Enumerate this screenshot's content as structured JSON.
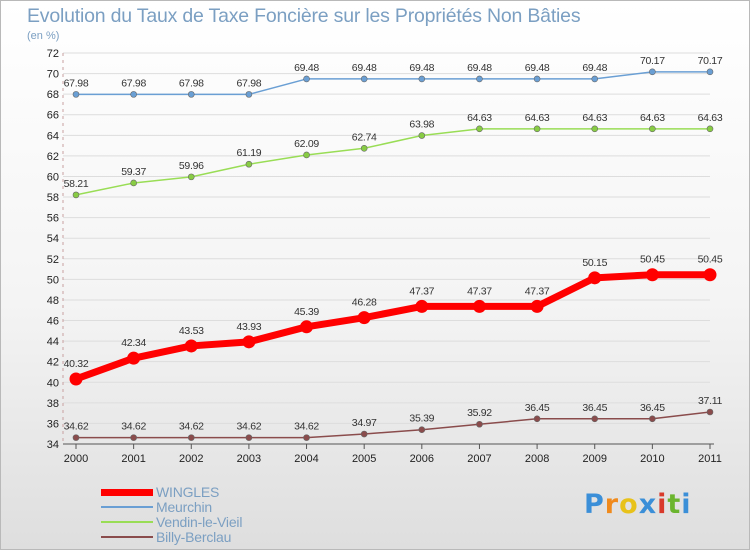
{
  "title": "Evolution du Taux de Taxe Foncière sur les Propriétés Non Bâties",
  "unit_label": "(en %)",
  "logo": {
    "text": "Proxiti",
    "letters": [
      "P",
      "r",
      "o",
      "x",
      "i",
      "t",
      "i"
    ],
    "colors": [
      "#3b8fd8",
      "#f08a1c",
      "#e8c21a",
      "#3b8fd8",
      "#d93a2b",
      "#6bb52e",
      "#3b8fd8"
    ]
  },
  "chart_data": {
    "type": "line",
    "title": "Evolution du Taux de Taxe Foncière sur les Propriétés Non Bâties",
    "ylabel": "(en %)",
    "xlabel": "",
    "ylim": [
      34,
      72
    ],
    "yticks": [
      34,
      36,
      38,
      40,
      42,
      44,
      46,
      48,
      50,
      52,
      54,
      56,
      58,
      60,
      62,
      64,
      66,
      68,
      70,
      72
    ],
    "categories": [
      "2000",
      "2001",
      "2002",
      "2003",
      "2004",
      "2005",
      "2006",
      "2007",
      "2008",
      "2009",
      "2010",
      "2011"
    ],
    "grid": "horizontal",
    "legend_position": "bottom-left",
    "series": [
      {
        "name": "WINGLES",
        "color": "#ff0000",
        "marker_color": "#ff0000",
        "emphasis": "thick",
        "values": [
          40.32,
          42.34,
          43.53,
          43.93,
          45.39,
          46.28,
          47.37,
          47.37,
          47.37,
          50.15,
          50.45,
          50.45
        ],
        "labels": [
          "40.32",
          "42.34",
          "43.53",
          "43.93",
          "45.39",
          "46.28",
          "47.37",
          "47.37",
          "47.37",
          "50.15",
          "50.45",
          "50.45"
        ]
      },
      {
        "name": "Meurchin",
        "color": "#6a9fd4",
        "marker_color": "#6a9fd4",
        "emphasis": "thin",
        "values": [
          67.98,
          67.98,
          67.98,
          67.98,
          69.48,
          69.48,
          69.48,
          69.48,
          69.48,
          69.48,
          70.17,
          70.17
        ],
        "labels": [
          "67.98",
          "67.98",
          "67.98",
          "67.98",
          "69.48",
          "69.48",
          "69.48",
          "69.48",
          "69.48",
          "69.48",
          "70.17",
          "70.17"
        ]
      },
      {
        "name": "Vendin-le-Vieil",
        "color": "#99dd55",
        "marker_color": "#88cc44",
        "emphasis": "thin",
        "values": [
          58.21,
          59.37,
          59.96,
          61.19,
          62.09,
          62.74,
          63.98,
          64.63,
          64.63,
          64.63,
          64.63,
          64.63
        ],
        "labels": [
          "58.21",
          "59.37",
          "59.96",
          "61.19",
          "62.09",
          "62.74",
          "63.98",
          "64.63",
          "64.63",
          "64.63",
          "64.63",
          "64.63"
        ]
      },
      {
        "name": "Billy-Berclau",
        "color": "#8a4c4c",
        "marker_color": "#8a4c4c",
        "emphasis": "thin",
        "values": [
          34.62,
          34.62,
          34.62,
          34.62,
          34.62,
          34.97,
          35.39,
          35.92,
          36.45,
          36.45,
          36.45,
          37.11
        ],
        "labels": [
          "34.62",
          "34.62",
          "34.62",
          "34.62",
          "34.62",
          "34.97",
          "35.39",
          "35.92",
          "36.45",
          "36.45",
          "36.45",
          "37.11"
        ]
      }
    ]
  }
}
